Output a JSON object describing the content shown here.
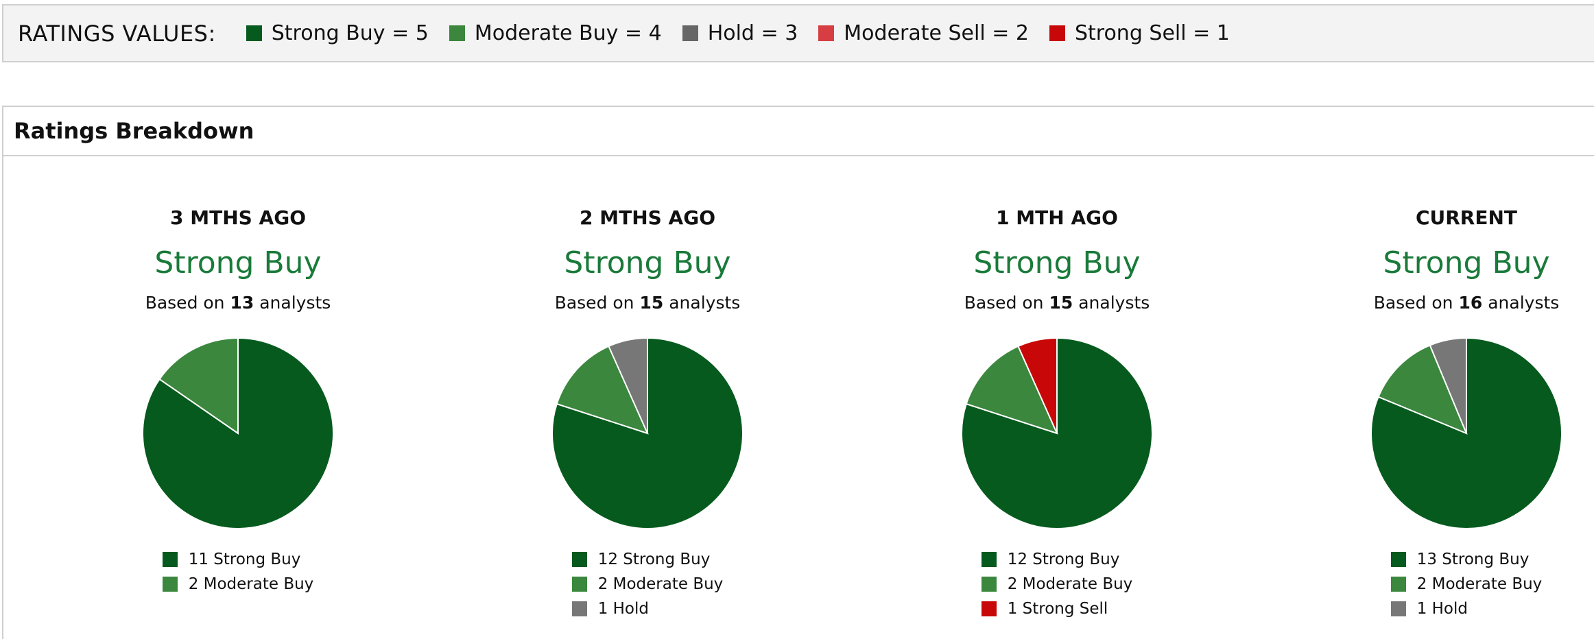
{
  "ratings_values": {
    "title": "RATINGS VALUES:",
    "items": [
      {
        "label": "Strong Buy = 5",
        "color": "#065a1e"
      },
      {
        "label": "Moderate Buy = 4",
        "color": "#3a873d"
      },
      {
        "label": "Hold = 3",
        "color": "#666666"
      },
      {
        "label": "Moderate Sell = 2",
        "color": "#d63e43"
      },
      {
        "label": "Strong Sell = 1",
        "color": "#c80808"
      }
    ]
  },
  "breakdown": {
    "title": "Ratings Breakdown",
    "based_prefix": "Based on ",
    "based_suffix": " analysts"
  },
  "chart_data": [
    {
      "type": "pie",
      "title": "3 MTHS AGO",
      "consensus": "Strong Buy",
      "analysts": "13",
      "slices": [
        {
          "label": "Strong Buy",
          "value": 11,
          "color": "#065a1e"
        },
        {
          "label": "Moderate Buy",
          "value": 2,
          "color": "#3a873d"
        }
      ],
      "legend": [
        "11 Strong Buy",
        "2 Moderate Buy"
      ]
    },
    {
      "type": "pie",
      "title": "2 MTHS AGO",
      "consensus": "Strong Buy",
      "analysts": "15",
      "slices": [
        {
          "label": "Strong Buy",
          "value": 12,
          "color": "#065a1e"
        },
        {
          "label": "Moderate Buy",
          "value": 2,
          "color": "#3a873d"
        },
        {
          "label": "Hold",
          "value": 1,
          "color": "#777777"
        }
      ],
      "legend": [
        "12 Strong Buy",
        "2 Moderate Buy",
        "1 Hold"
      ]
    },
    {
      "type": "pie",
      "title": "1 MTH AGO",
      "consensus": "Strong Buy",
      "analysts": "15",
      "slices": [
        {
          "label": "Strong Buy",
          "value": 12,
          "color": "#065a1e"
        },
        {
          "label": "Moderate Buy",
          "value": 2,
          "color": "#3a873d"
        },
        {
          "label": "Strong Sell",
          "value": 1,
          "color": "#c80808"
        }
      ],
      "legend": [
        "12 Strong Buy",
        "2 Moderate Buy",
        "1 Strong Sell"
      ]
    },
    {
      "type": "pie",
      "title": "CURRENT",
      "consensus": "Strong Buy",
      "analysts": "16",
      "slices": [
        {
          "label": "Strong Buy",
          "value": 13,
          "color": "#065a1e"
        },
        {
          "label": "Moderate Buy",
          "value": 2,
          "color": "#3a873d"
        },
        {
          "label": "Hold",
          "value": 1,
          "color": "#777777"
        }
      ],
      "legend": [
        "13 Strong Buy",
        "2 Moderate Buy",
        "1 Hold"
      ]
    }
  ]
}
